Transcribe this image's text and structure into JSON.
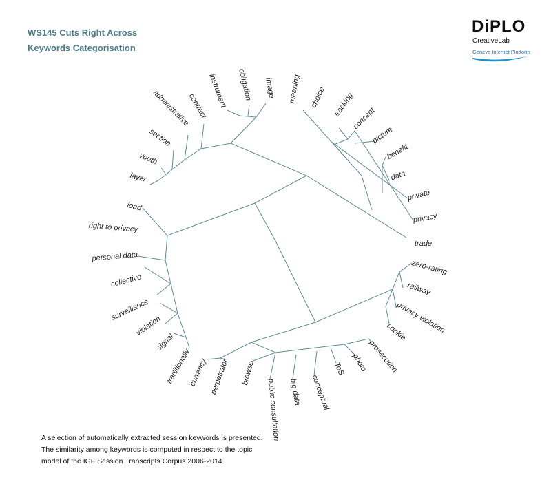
{
  "header": {
    "title": [
      "WS145 Cuts Right Across",
      "Keywords Categorisation"
    ]
  },
  "logo": {
    "name": "DiPLO",
    "lab": "CreativeLab",
    "platform": "Geneva Internet Platform"
  },
  "keywords": [
    "image",
    "obligation",
    "instrument",
    "contract",
    "administrative",
    "section",
    "youth",
    "layer",
    "meaning",
    "choice",
    "tracking",
    "concept",
    "picture",
    "benefit",
    "data",
    "private",
    "privacy",
    "trade",
    "zero-rating",
    "railway",
    "privacy violation",
    "cookie",
    "prosecution",
    "photo",
    "ToS",
    "conceptual",
    "big data",
    "public consultation",
    "load",
    "right to privacy",
    "personal data",
    "collective",
    "surveillance",
    "violation",
    "signal",
    "traditionally",
    "currency",
    "perpetrator",
    "browse"
  ],
  "caption": [
    "A selection of automatically extracted session keywords is presented.",
    "The similarity among keywords is computed in respect to the topic",
    "model of the IGF Session Transcripts Corpus 2006-2014."
  ]
}
